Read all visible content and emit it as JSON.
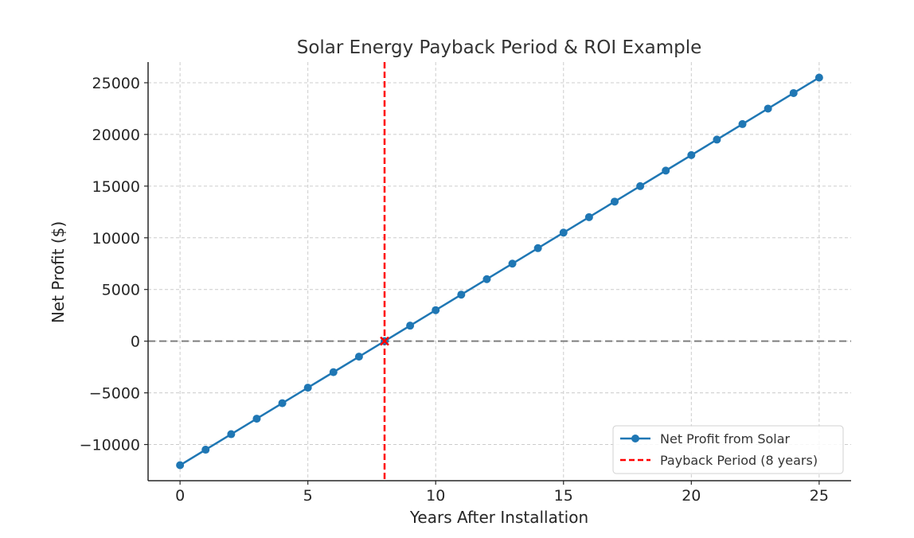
{
  "chart_data": {
    "type": "line",
    "title": "Solar Energy Payback Period & ROI Example",
    "xlabel": "Years After Installation",
    "ylabel": "Net Profit ($)",
    "xlim": [
      -1.25,
      26.25
    ],
    "ylim": [
      -13500,
      27000
    ],
    "x_ticks": [
      0,
      5,
      10,
      15,
      20,
      25
    ],
    "x_tick_labels": [
      "0",
      "5",
      "10",
      "15",
      "20",
      "25"
    ],
    "y_ticks": [
      -10000,
      -5000,
      0,
      5000,
      10000,
      15000,
      20000,
      25000
    ],
    "y_tick_labels": [
      "−10000",
      "−5000",
      "0",
      "5000",
      "10000",
      "15000",
      "20000",
      "25000"
    ],
    "grid": true,
    "legend_position": "lower-right",
    "series": [
      {
        "name": "Net Profit from Solar",
        "color": "#1f77b4",
        "x": [
          0,
          1,
          2,
          3,
          4,
          5,
          6,
          7,
          8,
          9,
          10,
          11,
          12,
          13,
          14,
          15,
          16,
          17,
          18,
          19,
          20,
          21,
          22,
          23,
          24,
          25
        ],
        "values": [
          -12000,
          -10500,
          -9000,
          -7500,
          -6000,
          -4500,
          -3000,
          -1500,
          0,
          1500,
          3000,
          4500,
          6000,
          7500,
          9000,
          10500,
          12000,
          13500,
          15000,
          16500,
          18000,
          19500,
          21000,
          22500,
          24000,
          25500
        ]
      }
    ],
    "payback": {
      "name": "Payback Period (8 years)",
      "x": 8,
      "y": 0,
      "color": "#ff0000"
    },
    "zero_line_color": "#7f7f7f"
  }
}
